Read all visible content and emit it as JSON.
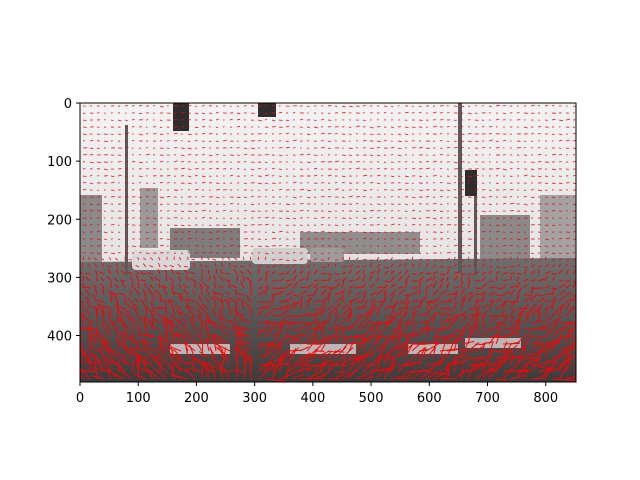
{
  "figure": {
    "description_free": true,
    "image_extent": {
      "x_range": [
        0,
        852
      ],
      "y_range": [
        0,
        480
      ]
    },
    "x_ticks": [
      "0",
      "100",
      "200",
      "300",
      "400",
      "500",
      "600",
      "700",
      "800"
    ],
    "y_ticks": [
      "0",
      "100",
      "200",
      "300",
      "400"
    ],
    "x_tick_values": [
      0,
      100,
      200,
      300,
      400,
      500,
      600,
      700,
      800
    ],
    "y_tick_values": [
      0,
      100,
      200,
      300,
      400
    ],
    "colors": {
      "arrows": "#ff0000",
      "sky": "#e9e9e9",
      "road": "#555555",
      "axes": "#000000"
    }
  }
}
